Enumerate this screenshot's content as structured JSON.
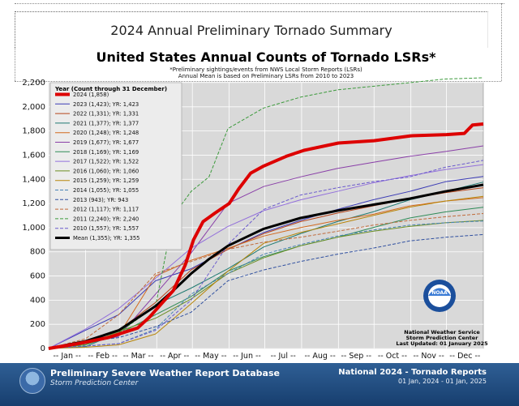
{
  "page_title": "2024 Annual Preliminary Tornado Summary",
  "chart_data": {
    "type": "line",
    "title": "United States Annual Counts of Tornado LSRs*",
    "subtitle_1": "*Preliminary sightings/events from NWS Local Storm Reports (LSRs)",
    "subtitle_2": "Annual Mean is based on Preliminary LSRs from 2010 to 2023",
    "legend_title": "Year (Count through 31 December)",
    "legend_placement": "top-left",
    "ylim": [
      0,
      2200
    ],
    "yticks": [
      0,
      200,
      400,
      600,
      800,
      1000,
      1200,
      1400,
      1600,
      1800,
      2000,
      2200
    ],
    "ytick_labels": [
      "0",
      "200",
      "400",
      "600",
      "800",
      "1,000",
      "1,200",
      "1,400",
      "1,600",
      "1,800",
      "2,000",
      "2,200"
    ],
    "x_labels": [
      "-- Jan --",
      "-- Feb --",
      "-- Mar --",
      "-- Apr --",
      "-- May --",
      "-- Jun --",
      "-- Jul --",
      "-- Aug --",
      "-- Sep --",
      "-- Oct --",
      "-- Nov --",
      "-- Dec --"
    ],
    "grid": true,
    "series": [
      {
        "name": "2024 (1,858)",
        "color": "#dd0000",
        "width": 4,
        "dash": "",
        "points": [
          [
            0,
            0
          ],
          [
            25,
            40
          ],
          [
            50,
            90
          ],
          [
            75,
            170
          ],
          [
            85,
            260
          ],
          [
            95,
            370
          ],
          [
            105,
            480
          ],
          [
            115,
            690
          ],
          [
            122,
            900
          ],
          [
            130,
            1050
          ],
          [
            140,
            1120
          ],
          [
            152,
            1200
          ],
          [
            160,
            1320
          ],
          [
            170,
            1450
          ],
          [
            181,
            1510
          ],
          [
            200,
            1590
          ],
          [
            215,
            1640
          ],
          [
            244,
            1700
          ],
          [
            274,
            1720
          ],
          [
            305,
            1760
          ],
          [
            335,
            1770
          ],
          [
            350,
            1780
          ],
          [
            357,
            1850
          ],
          [
            366,
            1858
          ]
        ]
      },
      {
        "name": "2023 (1,423); YR: 1,423",
        "color": "#3b3bb5",
        "width": 1,
        "dash": "",
        "points": [
          [
            0,
            0
          ],
          [
            31,
            150
          ],
          [
            59,
            280
          ],
          [
            90,
            560
          ],
          [
            120,
            660
          ],
          [
            151,
            820
          ],
          [
            181,
            960
          ],
          [
            212,
            1060
          ],
          [
            243,
            1150
          ],
          [
            273,
            1230
          ],
          [
            304,
            1300
          ],
          [
            334,
            1380
          ],
          [
            366,
            1423
          ]
        ]
      },
      {
        "name": "2022 (1,331); YR: 1,331",
        "color": "#b5451b",
        "width": 1,
        "dash": "",
        "points": [
          [
            0,
            0
          ],
          [
            31,
            40
          ],
          [
            59,
            150
          ],
          [
            90,
            380
          ],
          [
            120,
            650
          ],
          [
            151,
            820
          ],
          [
            181,
            950
          ],
          [
            212,
            1050
          ],
          [
            243,
            1120
          ],
          [
            273,
            1180
          ],
          [
            304,
            1240
          ],
          [
            334,
            1290
          ],
          [
            366,
            1331
          ]
        ]
      },
      {
        "name": "2021 (1,377); YR: 1,377",
        "color": "#1f7a72",
        "width": 1,
        "dash": "",
        "points": [
          [
            0,
            0
          ],
          [
            31,
            15
          ],
          [
            59,
            130
          ],
          [
            90,
            360
          ],
          [
            120,
            500
          ],
          [
            151,
            660
          ],
          [
            181,
            840
          ],
          [
            212,
            950
          ],
          [
            243,
            1050
          ],
          [
            273,
            1130
          ],
          [
            304,
            1230
          ],
          [
            334,
            1300
          ],
          [
            366,
            1377
          ]
        ]
      },
      {
        "name": "2020 (1,248); YR: 1,248",
        "color": "#d2691e",
        "width": 1,
        "dash": "",
        "points": [
          [
            0,
            0
          ],
          [
            31,
            50
          ],
          [
            59,
            110
          ],
          [
            90,
            600
          ],
          [
            120,
            730
          ],
          [
            151,
            830
          ],
          [
            181,
            930
          ],
          [
            212,
            1000
          ],
          [
            243,
            1060
          ],
          [
            273,
            1110
          ],
          [
            304,
            1180
          ],
          [
            334,
            1220
          ],
          [
            366,
            1248
          ]
        ]
      },
      {
        "name": "2019 (1,677); YR: 1,677",
        "color": "#8a3fa8",
        "width": 1,
        "dash": "",
        "points": [
          [
            0,
            0
          ],
          [
            31,
            40
          ],
          [
            59,
            100
          ],
          [
            90,
            450
          ],
          [
            120,
            790
          ],
          [
            151,
            1200
          ],
          [
            181,
            1340
          ],
          [
            212,
            1420
          ],
          [
            243,
            1490
          ],
          [
            273,
            1540
          ],
          [
            304,
            1590
          ],
          [
            334,
            1630
          ],
          [
            366,
            1677
          ]
        ]
      },
      {
        "name": "2018 (1,169); YR: 1,169",
        "color": "#2e8b57",
        "width": 1,
        "dash": "",
        "points": [
          [
            0,
            0
          ],
          [
            31,
            30
          ],
          [
            59,
            120
          ],
          [
            90,
            280
          ],
          [
            120,
            430
          ],
          [
            151,
            640
          ],
          [
            181,
            760
          ],
          [
            212,
            850
          ],
          [
            243,
            920
          ],
          [
            273,
            1000
          ],
          [
            304,
            1080
          ],
          [
            334,
            1130
          ],
          [
            366,
            1169
          ]
        ]
      },
      {
        "name": "2017 (1,522); YR: 1,522",
        "color": "#9370db",
        "width": 1,
        "dash": "",
        "points": [
          [
            0,
            0
          ],
          [
            31,
            160
          ],
          [
            59,
            330
          ],
          [
            90,
            580
          ],
          [
            120,
            830
          ],
          [
            151,
            1010
          ],
          [
            181,
            1140
          ],
          [
            212,
            1230
          ],
          [
            243,
            1300
          ],
          [
            273,
            1370
          ],
          [
            304,
            1430
          ],
          [
            334,
            1480
          ],
          [
            366,
            1522
          ]
        ]
      },
      {
        "name": "2016 (1,060); YR: 1,060",
        "color": "#6b8e23",
        "width": 1,
        "dash": "",
        "points": [
          [
            0,
            0
          ],
          [
            31,
            30
          ],
          [
            59,
            140
          ],
          [
            90,
            250
          ],
          [
            120,
            410
          ],
          [
            151,
            620
          ],
          [
            181,
            750
          ],
          [
            212,
            850
          ],
          [
            243,
            920
          ],
          [
            273,
            970
          ],
          [
            304,
            1010
          ],
          [
            334,
            1040
          ],
          [
            366,
            1060
          ]
        ]
      },
      {
        "name": "2015 (1,259); YR: 1,259",
        "color": "#b8860b",
        "width": 1,
        "dash": "",
        "points": [
          [
            0,
            0
          ],
          [
            31,
            10
          ],
          [
            59,
            30
          ],
          [
            90,
            120
          ],
          [
            120,
            370
          ],
          [
            151,
            640
          ],
          [
            181,
            870
          ],
          [
            212,
            960
          ],
          [
            243,
            1030
          ],
          [
            273,
            1100
          ],
          [
            304,
            1170
          ],
          [
            334,
            1220
          ],
          [
            366,
            1259
          ]
        ]
      },
      {
        "name": "2014 (1,055); YR: 1,055",
        "color": "#4682b4",
        "width": 1,
        "dash": "4,2",
        "points": [
          [
            0,
            0
          ],
          [
            31,
            20
          ],
          [
            59,
            40
          ],
          [
            90,
            160
          ],
          [
            120,
            450
          ],
          [
            151,
            620
          ],
          [
            181,
            780
          ],
          [
            212,
            860
          ],
          [
            243,
            930
          ],
          [
            273,
            980
          ],
          [
            304,
            1020
          ],
          [
            334,
            1040
          ],
          [
            366,
            1055
          ]
        ]
      },
      {
        "name": "2013 (943); YR: 943",
        "color": "#3050a0",
        "width": 1,
        "dash": "4,2",
        "points": [
          [
            0,
            0
          ],
          [
            31,
            60
          ],
          [
            59,
            90
          ],
          [
            90,
            180
          ],
          [
            120,
            300
          ],
          [
            151,
            560
          ],
          [
            181,
            650
          ],
          [
            212,
            720
          ],
          [
            243,
            780
          ],
          [
            273,
            830
          ],
          [
            304,
            890
          ],
          [
            334,
            920
          ],
          [
            366,
            943
          ]
        ]
      },
      {
        "name": "2012 (1,117); YR: 1,117",
        "color": "#c06a3a",
        "width": 1,
        "dash": "4,2",
        "points": [
          [
            0,
            0
          ],
          [
            31,
            80
          ],
          [
            59,
            280
          ],
          [
            90,
            620
          ],
          [
            120,
            720
          ],
          [
            151,
            820
          ],
          [
            181,
            880
          ],
          [
            212,
            920
          ],
          [
            243,
            970
          ],
          [
            273,
            1020
          ],
          [
            304,
            1060
          ],
          [
            334,
            1090
          ],
          [
            366,
            1117
          ]
        ]
      },
      {
        "name": "2011 (2,240); YR: 2,240",
        "color": "#3c9a3c",
        "width": 1,
        "dash": "4,2",
        "points": [
          [
            0,
            0
          ],
          [
            31,
            30
          ],
          [
            59,
            130
          ],
          [
            90,
            350
          ],
          [
            105,
            1100
          ],
          [
            120,
            1300
          ],
          [
            135,
            1420
          ],
          [
            151,
            1820
          ],
          [
            181,
            1990
          ],
          [
            212,
            2080
          ],
          [
            243,
            2140
          ],
          [
            273,
            2170
          ],
          [
            304,
            2200
          ],
          [
            334,
            2230
          ],
          [
            366,
            2240
          ]
        ]
      },
      {
        "name": "2010 (1,557); YR: 1,557",
        "color": "#6a5acd",
        "width": 1,
        "dash": "4,2",
        "points": [
          [
            0,
            0
          ],
          [
            31,
            20
          ],
          [
            59,
            40
          ],
          [
            90,
            150
          ],
          [
            120,
            400
          ],
          [
            151,
            860
          ],
          [
            181,
            1150
          ],
          [
            212,
            1270
          ],
          [
            243,
            1330
          ],
          [
            273,
            1380
          ],
          [
            304,
            1420
          ],
          [
            334,
            1500
          ],
          [
            366,
            1557
          ]
        ]
      },
      {
        "name": "Mean (1,355); YR: 1,355",
        "color": "#000000",
        "width": 3,
        "dash": "",
        "points": [
          [
            0,
            0
          ],
          [
            31,
            60
          ],
          [
            59,
            150
          ],
          [
            90,
            350
          ],
          [
            105,
            480
          ],
          [
            120,
            620
          ],
          [
            135,
            740
          ],
          [
            151,
            850
          ],
          [
            166,
            920
          ],
          [
            181,
            990
          ],
          [
            212,
            1080
          ],
          [
            243,
            1140
          ],
          [
            273,
            1190
          ],
          [
            304,
            1240
          ],
          [
            334,
            1300
          ],
          [
            366,
            1355
          ]
        ]
      }
    ],
    "annotations": {
      "nws_line1": "National Weather Service",
      "nws_line2": "Storm Prediction Center",
      "nws_line3": "Last Updated: 01 January 2025",
      "logo_text": "NOAA"
    }
  },
  "footer": {
    "title": "Preliminary Severe Weather Report Database",
    "subtitle": "Storm Prediction Center",
    "right_title": "National 2024 - Tornado Reports",
    "right_range": "01 Jan, 2024 - 01 Jan, 2025"
  }
}
